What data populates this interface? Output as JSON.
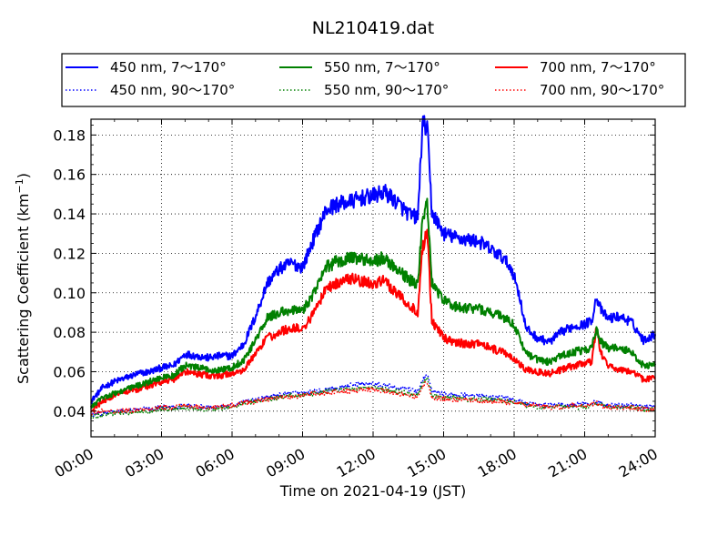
{
  "chart_data": {
    "type": "line",
    "title": "NL210419.dat",
    "xlabel": "Time on 2021-04-19 (JST)",
    "ylabel": "Scattering Coefficient (km",
    "ylabel_sup": "−1",
    "ylabel_close": ")",
    "xlim": [
      0,
      24
    ],
    "ylim": [
      0.027,
      0.188
    ],
    "x_ticks": [
      0,
      3,
      6,
      9,
      12,
      15,
      18,
      21,
      24
    ],
    "x_tick_labels": [
      "00:00",
      "03:00",
      "06:00",
      "09:00",
      "12:00",
      "15:00",
      "18:00",
      "21:00",
      "24:00"
    ],
    "y_ticks": [
      0.04,
      0.06,
      0.08,
      0.1,
      0.12,
      0.14,
      0.16,
      0.18
    ],
    "y_tick_labels": [
      "0.04",
      "0.06",
      "0.08",
      "0.10",
      "0.12",
      "0.14",
      "0.16",
      "0.18"
    ],
    "grid": true,
    "grid_style": "dotted",
    "legend_position": "top",
    "legend_columns": 3,
    "x": [
      0,
      0.5,
      1,
      1.5,
      2,
      2.5,
      3,
      3.5,
      4,
      4.5,
      5,
      5.5,
      6,
      6.5,
      7,
      7.5,
      8,
      8.5,
      9,
      9.5,
      10,
      10.5,
      11,
      11.5,
      12,
      12.5,
      13,
      13.5,
      13.9,
      14.1,
      14.3,
      14.5,
      15,
      15.5,
      16,
      16.5,
      17,
      17.5,
      17.9,
      18.2,
      18.5,
      19,
      19.5,
      20,
      20.5,
      21,
      21.3,
      21.5,
      21.7,
      22,
      22.5,
      23,
      23.5,
      24
    ],
    "series": [
      {
        "name": "450 nm, 7～170°",
        "color": "#0000ff",
        "style": "solid",
        "values": [
          0.045,
          0.052,
          0.055,
          0.057,
          0.059,
          0.06,
          0.062,
          0.063,
          0.069,
          0.068,
          0.067,
          0.068,
          0.068,
          0.074,
          0.088,
          0.105,
          0.112,
          0.115,
          0.113,
          0.128,
          0.142,
          0.145,
          0.146,
          0.148,
          0.149,
          0.151,
          0.146,
          0.14,
          0.138,
          0.185,
          0.184,
          0.141,
          0.13,
          0.128,
          0.127,
          0.126,
          0.122,
          0.118,
          0.112,
          0.1,
          0.082,
          0.077,
          0.075,
          0.08,
          0.083,
          0.084,
          0.086,
          0.098,
          0.091,
          0.087,
          0.088,
          0.085,
          0.076,
          0.079
        ]
      },
      {
        "name": "450 nm, 90～170°",
        "color": "#0000ff",
        "style": "dotted",
        "values": [
          0.038,
          0.039,
          0.04,
          0.04,
          0.041,
          0.041,
          0.042,
          0.042,
          0.043,
          0.042,
          0.042,
          0.042,
          0.043,
          0.045,
          0.046,
          0.047,
          0.048,
          0.049,
          0.049,
          0.05,
          0.051,
          0.052,
          0.053,
          0.054,
          0.054,
          0.053,
          0.052,
          0.051,
          0.05,
          0.056,
          0.059,
          0.05,
          0.049,
          0.048,
          0.048,
          0.048,
          0.047,
          0.047,
          0.046,
          0.045,
          0.044,
          0.043,
          0.043,
          0.043,
          0.043,
          0.044,
          0.044,
          0.045,
          0.044,
          0.043,
          0.043,
          0.043,
          0.042,
          0.043
        ]
      },
      {
        "name": "550 nm, 7～170°",
        "color": "#008000",
        "style": "solid",
        "values": [
          0.042,
          0.047,
          0.049,
          0.051,
          0.053,
          0.055,
          0.057,
          0.058,
          0.063,
          0.062,
          0.061,
          0.061,
          0.062,
          0.066,
          0.076,
          0.087,
          0.09,
          0.091,
          0.091,
          0.1,
          0.113,
          0.116,
          0.118,
          0.117,
          0.116,
          0.118,
          0.112,
          0.107,
          0.104,
          0.138,
          0.146,
          0.105,
          0.096,
          0.093,
          0.092,
          0.092,
          0.09,
          0.088,
          0.085,
          0.078,
          0.069,
          0.066,
          0.065,
          0.068,
          0.07,
          0.071,
          0.072,
          0.081,
          0.075,
          0.072,
          0.072,
          0.07,
          0.063,
          0.064
        ]
      },
      {
        "name": "550 nm, 90～170°",
        "color": "#008000",
        "style": "dotted",
        "values": [
          0.037,
          0.038,
          0.039,
          0.039,
          0.04,
          0.04,
          0.041,
          0.041,
          0.042,
          0.041,
          0.041,
          0.041,
          0.042,
          0.044,
          0.045,
          0.046,
          0.047,
          0.048,
          0.048,
          0.049,
          0.05,
          0.051,
          0.051,
          0.052,
          0.052,
          0.051,
          0.05,
          0.049,
          0.048,
          0.054,
          0.057,
          0.048,
          0.047,
          0.047,
          0.046,
          0.046,
          0.046,
          0.045,
          0.045,
          0.044,
          0.043,
          0.042,
          0.042,
          0.042,
          0.042,
          0.042,
          0.043,
          0.044,
          0.043,
          0.042,
          0.042,
          0.042,
          0.041,
          0.041
        ]
      },
      {
        "name": "700 nm, 7～170°",
        "color": "#ff0000",
        "style": "solid",
        "values": [
          0.04,
          0.045,
          0.048,
          0.05,
          0.051,
          0.053,
          0.055,
          0.056,
          0.06,
          0.059,
          0.058,
          0.058,
          0.059,
          0.061,
          0.069,
          0.077,
          0.08,
          0.082,
          0.082,
          0.09,
          0.102,
          0.105,
          0.107,
          0.106,
          0.105,
          0.106,
          0.1,
          0.094,
          0.09,
          0.122,
          0.131,
          0.086,
          0.077,
          0.075,
          0.074,
          0.074,
          0.072,
          0.07,
          0.068,
          0.064,
          0.061,
          0.06,
          0.059,
          0.061,
          0.063,
          0.064,
          0.065,
          0.082,
          0.069,
          0.063,
          0.061,
          0.06,
          0.056,
          0.057
        ]
      },
      {
        "name": "700 nm, 90～170°",
        "color": "#ff0000",
        "style": "dotted",
        "values": [
          0.039,
          0.04,
          0.04,
          0.04,
          0.041,
          0.041,
          0.042,
          0.042,
          0.043,
          0.042,
          0.042,
          0.042,
          0.043,
          0.044,
          0.045,
          0.046,
          0.047,
          0.047,
          0.048,
          0.049,
          0.049,
          0.05,
          0.05,
          0.051,
          0.051,
          0.05,
          0.049,
          0.048,
          0.047,
          0.053,
          0.055,
          0.047,
          0.046,
          0.046,
          0.046,
          0.045,
          0.045,
          0.045,
          0.044,
          0.044,
          0.043,
          0.043,
          0.042,
          0.042,
          0.043,
          0.043,
          0.043,
          0.044,
          0.043,
          0.042,
          0.042,
          0.042,
          0.041,
          0.041
        ]
      }
    ]
  }
}
